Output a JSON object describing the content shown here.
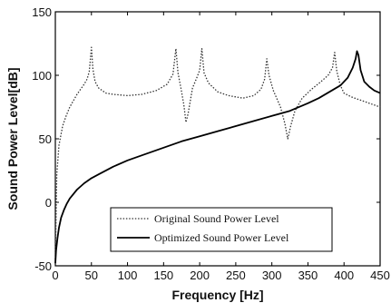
{
  "chart_data": {
    "type": "line",
    "xlabel": "Frequency [Hz]",
    "ylabel": "Sound Power Level[dB]",
    "xlim": [
      0,
      450
    ],
    "ylim": [
      -50,
      150
    ],
    "xticks": [
      0,
      50,
      100,
      150,
      200,
      250,
      300,
      350,
      400,
      450
    ],
    "yticks": [
      -50,
      0,
      50,
      100,
      150
    ],
    "grid": false,
    "legend_position": "bottom-center",
    "series": [
      {
        "name": "Original Sound Power Level",
        "style": "dotted",
        "color": "#333333",
        "points": [
          [
            0,
            -45
          ],
          [
            2,
            22
          ],
          [
            5,
            45
          ],
          [
            10,
            60
          ],
          [
            15,
            68
          ],
          [
            20,
            75
          ],
          [
            25,
            80
          ],
          [
            30,
            85
          ],
          [
            35,
            89
          ],
          [
            40,
            93
          ],
          [
            44,
            97
          ],
          [
            47,
            103
          ],
          [
            50,
            122
          ],
          [
            52,
            105
          ],
          [
            55,
            95
          ],
          [
            60,
            90
          ],
          [
            70,
            86
          ],
          [
            80,
            85
          ],
          [
            100,
            84
          ],
          [
            120,
            85
          ],
          [
            140,
            88
          ],
          [
            155,
            93
          ],
          [
            163,
            101
          ],
          [
            167,
            121
          ],
          [
            170,
            102
          ],
          [
            174,
            90
          ],
          [
            178,
            77
          ],
          [
            181,
            63
          ],
          [
            184,
            70
          ],
          [
            190,
            90
          ],
          [
            196,
            98
          ],
          [
            200,
            104
          ],
          [
            203,
            121
          ],
          [
            206,
            102
          ],
          [
            212,
            94
          ],
          [
            225,
            87
          ],
          [
            240,
            84
          ],
          [
            260,
            82
          ],
          [
            275,
            84
          ],
          [
            285,
            89
          ],
          [
            290,
            97
          ],
          [
            293,
            113
          ],
          [
            296,
            100
          ],
          [
            302,
            88
          ],
          [
            312,
            75
          ],
          [
            318,
            62
          ],
          [
            322,
            50
          ],
          [
            326,
            60
          ],
          [
            332,
            72
          ],
          [
            342,
            82
          ],
          [
            355,
            89
          ],
          [
            368,
            95
          ],
          [
            378,
            100
          ],
          [
            384,
            106
          ],
          [
            387,
            118
          ],
          [
            390,
            103
          ],
          [
            395,
            92
          ],
          [
            400,
            86
          ],
          [
            410,
            83
          ],
          [
            420,
            81
          ],
          [
            430,
            79
          ],
          [
            440,
            77
          ],
          [
            450,
            75
          ]
        ]
      },
      {
        "name": "Optimized Sound Power Level",
        "style": "solid",
        "color": "#000000",
        "points": [
          [
            0,
            -48
          ],
          [
            1,
            -38
          ],
          [
            3,
            -28
          ],
          [
            5,
            -20
          ],
          [
            8,
            -12
          ],
          [
            12,
            -6
          ],
          [
            16,
            -1
          ],
          [
            20,
            3
          ],
          [
            30,
            10
          ],
          [
            40,
            15
          ],
          [
            50,
            19
          ],
          [
            60,
            22
          ],
          [
            80,
            28
          ],
          [
            100,
            33
          ],
          [
            120,
            37
          ],
          [
            150,
            43
          ],
          [
            175,
            48
          ],
          [
            200,
            52
          ],
          [
            225,
            56
          ],
          [
            250,
            60
          ],
          [
            275,
            64
          ],
          [
            300,
            68
          ],
          [
            325,
            72
          ],
          [
            350,
            78
          ],
          [
            365,
            82
          ],
          [
            380,
            87
          ],
          [
            395,
            92
          ],
          [
            405,
            98
          ],
          [
            412,
            106
          ],
          [
            416,
            113
          ],
          [
            418,
            119
          ],
          [
            420,
            116
          ],
          [
            423,
            104
          ],
          [
            428,
            95
          ],
          [
            435,
            91
          ],
          [
            442,
            88
          ],
          [
            450,
            86
          ]
        ]
      }
    ]
  }
}
